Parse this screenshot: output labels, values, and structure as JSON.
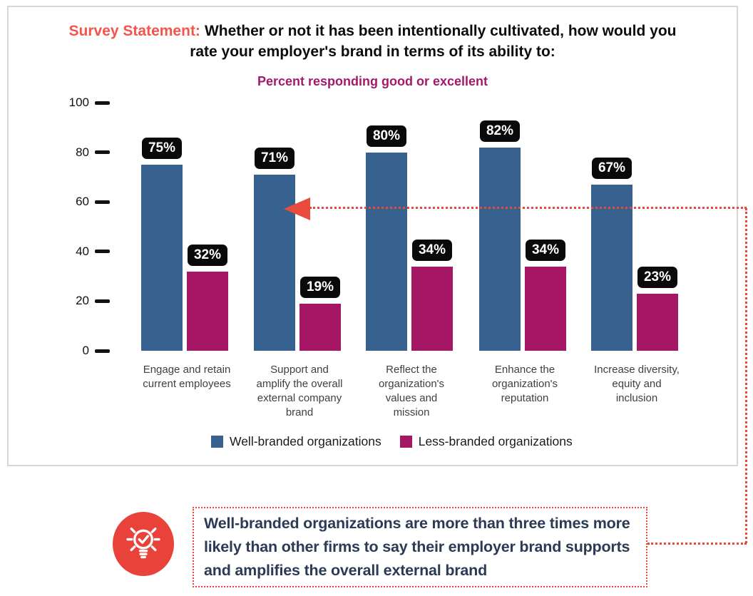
{
  "header": {
    "label": "Survey Statement:",
    "title": "Whether or not it has been intentionally cultivated, how would you rate your employer's brand in terms of its ability to:",
    "subtitle": "Percent responding good or excellent"
  },
  "chart_data": {
    "type": "bar",
    "title": "Percent responding good or excellent",
    "categories": [
      "Engage and retain current employees",
      "Support and amplify the overall external company brand",
      "Reflect the organization's values and mission",
      "Enhance the organization's reputation",
      "Increase diversity, equity and inclusion"
    ],
    "series": [
      {
        "name": "Well-branded organizations",
        "color": "#37618E",
        "values": [
          75,
          71,
          80,
          82,
          67
        ]
      },
      {
        "name": "Less-branded organizations",
        "color": "#A51664",
        "values": [
          32,
          19,
          34,
          34,
          23
        ]
      }
    ],
    "value_suffix": "%",
    "ylim": [
      0,
      100
    ],
    "yticks": [
      0,
      20,
      40,
      60,
      80,
      100
    ],
    "grid": false,
    "legend_position": "bottom",
    "annotation": {
      "arrow_points_to_category": "Support and amplify the overall external company brand",
      "arrow_points_to_series": "Well-branded organizations",
      "arrow_value": 71
    }
  },
  "callout": {
    "icon": "lightbulb-icon",
    "text": "Well-branded organizations are more than three times more likely than other firms to say their employer brand supports and amplifies the overall external brand"
  },
  "colors": {
    "accent_red": "#F4544B",
    "arrow_red": "#E94B3C",
    "dotted_red": "#E8473B",
    "icon_red": "#E8423B",
    "subtitle_magenta": "#A31A6B",
    "bar_blue": "#37618E",
    "bar_magenta": "#A51664",
    "value_label_bg": "#0A0A0A",
    "callout_text": "#2B3A55",
    "panel_border": "#D9D5D2"
  }
}
